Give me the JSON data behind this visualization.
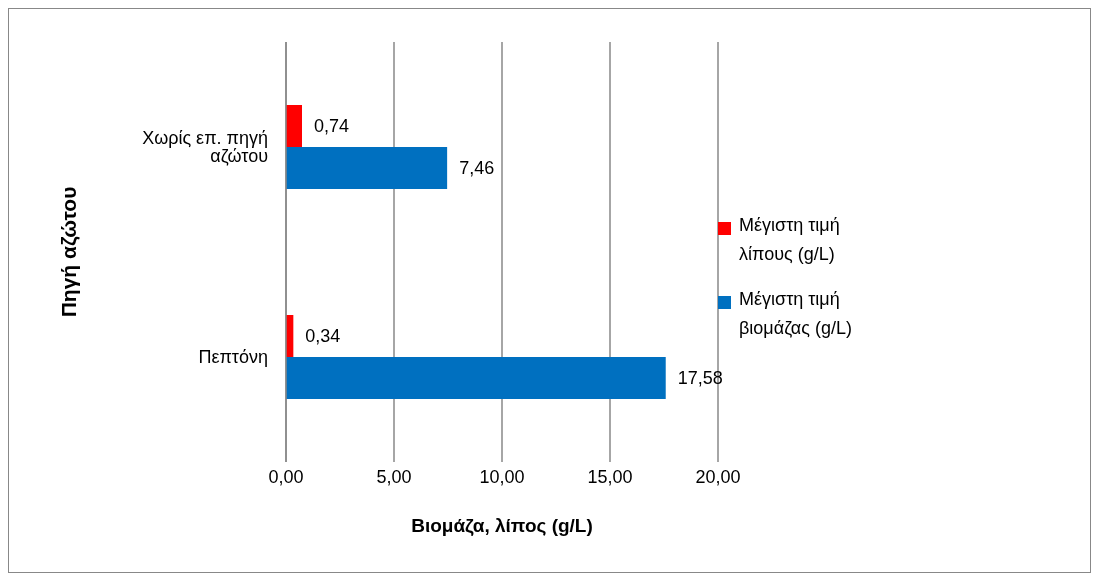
{
  "chart_data": {
    "type": "bar",
    "orientation": "horizontal",
    "xlabel": "Βιομάζα, λίπος (g/L)",
    "ylabel": "Πηγή αζώτου",
    "categories": [
      "Χωρίς επ. πηγή αζώτου",
      "Πεπτόνη"
    ],
    "series": [
      {
        "name": "Μέγιστη τιμή λίπους (g/L)",
        "color": "#ff0000",
        "values": [
          0.74,
          0.34
        ],
        "value_labels": [
          "0,74",
          "0,34"
        ]
      },
      {
        "name": "Μέγιστη τιμή βιομάζας (g/L)",
        "color": "#0070c0",
        "values": [
          7.46,
          17.58
        ],
        "value_labels": [
          "7,46",
          "17,58"
        ]
      }
    ],
    "xlim": [
      0,
      20
    ],
    "xticks": [
      {
        "value": 0,
        "label": "0,00"
      },
      {
        "value": 5,
        "label": "5,00"
      },
      {
        "value": 10,
        "label": "10,00"
      },
      {
        "value": 15,
        "label": "15,00"
      },
      {
        "value": 20,
        "label": "20,00"
      }
    ],
    "grid": "x",
    "legend": "right"
  }
}
